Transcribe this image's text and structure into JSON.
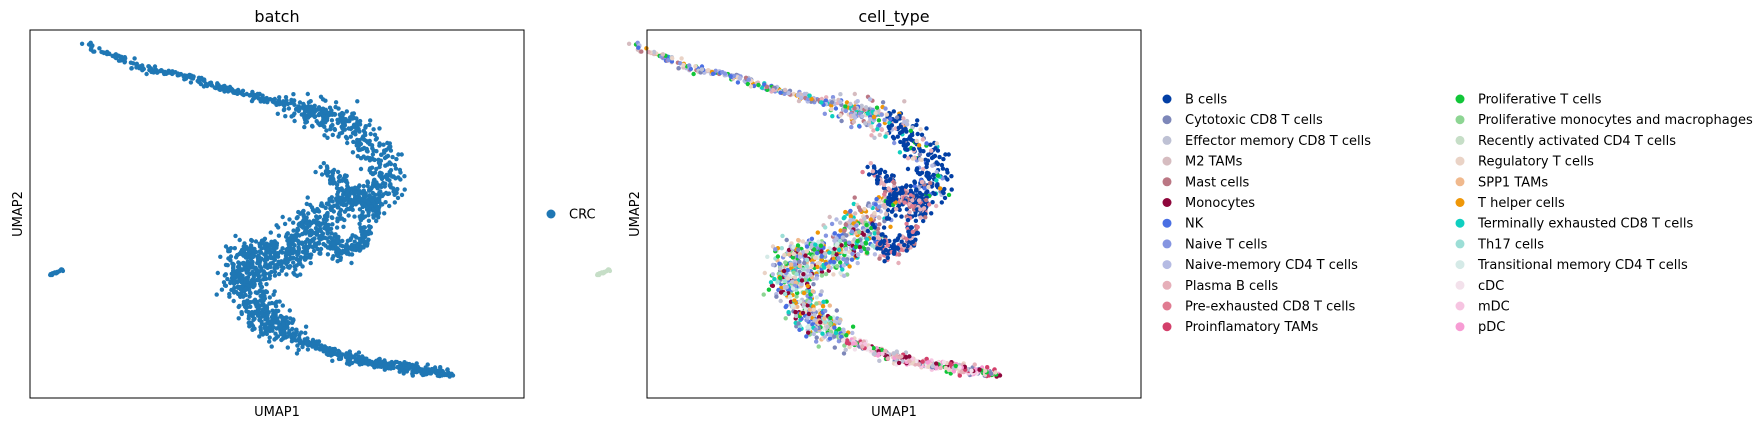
{
  "chart_data": [
    {
      "type": "scatter",
      "title": "batch",
      "xlabel": "UMAP1",
      "ylabel": "UMAP2",
      "grid": false,
      "ticks": "hidden",
      "legend": {
        "placement": "right",
        "columns": 1,
        "entries": [
          {
            "name": "CRC",
            "color": "#1f77b4"
          }
        ]
      }
    },
    {
      "type": "scatter",
      "title": "cell_type",
      "xlabel": "UMAP1",
      "ylabel": "UMAP2",
      "grid": false,
      "ticks": "hidden",
      "legend": {
        "placement": "right",
        "columns": 2,
        "entries": [
          {
            "name": "B cells",
            "color": "#023fa5"
          },
          {
            "name": "Cytotoxic CD8 T cells",
            "color": "#7d87b9"
          },
          {
            "name": "Effector memory CD8 T cells",
            "color": "#bec1d4"
          },
          {
            "name": "M2 TAMs",
            "color": "#d6bcc0"
          },
          {
            "name": "Mast cells",
            "color": "#bb7784"
          },
          {
            "name": "Monocytes",
            "color": "#8e063b"
          },
          {
            "name": "NK",
            "color": "#4a6fe3"
          },
          {
            "name": "Naive T cells",
            "color": "#8595e1"
          },
          {
            "name": "Naive-memory CD4 T cells",
            "color": "#b5bbe3"
          },
          {
            "name": "Plasma B cells",
            "color": "#e6afb9"
          },
          {
            "name": "Pre-exhausted CD8 T cells",
            "color": "#e07b91"
          },
          {
            "name": "Proinflamatory TAMs",
            "color": "#d33f6a"
          },
          {
            "name": "Proliferative T cells",
            "color": "#11c638"
          },
          {
            "name": "Proliferative monocytes and macrophages",
            "color": "#8dd593"
          },
          {
            "name": "Recently activated CD4 T cells",
            "color": "#c6dec7"
          },
          {
            "name": "Regulatory T cells",
            "color": "#ead3c6"
          },
          {
            "name": "SPP1 TAMs",
            "color": "#f0b98d"
          },
          {
            "name": "T helper cells",
            "color": "#ef9708"
          },
          {
            "name": "Terminally exhausted CD8 T cells",
            "color": "#0fcfc0"
          },
          {
            "name": "Th17 cells",
            "color": "#9cded6"
          },
          {
            "name": "Transitional memory CD4 T cells",
            "color": "#d5eae7"
          },
          {
            "name": "cDC",
            "color": "#f3e1eb"
          },
          {
            "name": "mDC",
            "color": "#f6c4e1"
          },
          {
            "name": "pDC",
            "color": "#f79cd4"
          }
        ]
      }
    }
  ]
}
